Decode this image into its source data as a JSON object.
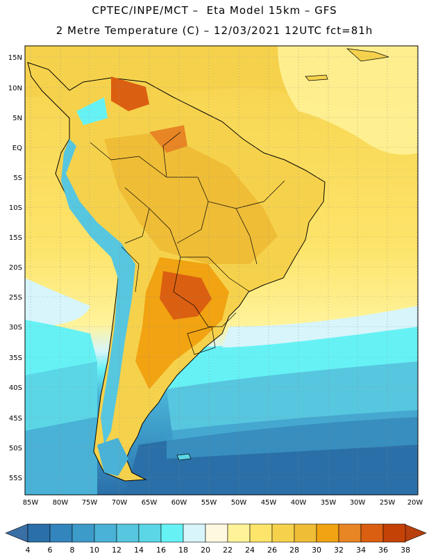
{
  "header": {
    "line1": "CPTEC/INPE/MCT –  Eta Model 15km – GFS",
    "line2": "2 Metre Temperature (C) – 12/03/2021 12UTC fct=81h"
  },
  "map": {
    "lat_labels": [
      "15N",
      "10N",
      "5N",
      "EQ",
      "5S",
      "10S",
      "15S",
      "20S",
      "25S",
      "30S",
      "35S",
      "40S",
      "45S",
      "50S",
      "55S"
    ],
    "lon_labels": [
      "85W",
      "80W",
      "75W",
      "70W",
      "65W",
      "60W",
      "55W",
      "50W",
      "45W",
      "40W",
      "35W",
      "30W",
      "25W",
      "20W"
    ]
  },
  "colorbar": {
    "labels": [
      "4",
      "6",
      "8",
      "10",
      "12",
      "14",
      "16",
      "18",
      "20",
      "22",
      "24",
      "26",
      "28",
      "30",
      "32",
      "34",
      "36",
      "38"
    ],
    "colors": [
      "#2a6fa8",
      "#3385bd",
      "#3d9bc9",
      "#49b2d6",
      "#57c6df",
      "#5bd6e6",
      "#66f2f5",
      "#d7f5fb",
      "#fff8e0",
      "#fff39a",
      "#fde46a",
      "#f6d24c",
      "#efbd36",
      "#f1a312",
      "#e88524",
      "#db5f11",
      "#c54206"
    ],
    "low_arrow_color": "#3a6fa6",
    "high_arrow_color": "#b8400c"
  }
}
